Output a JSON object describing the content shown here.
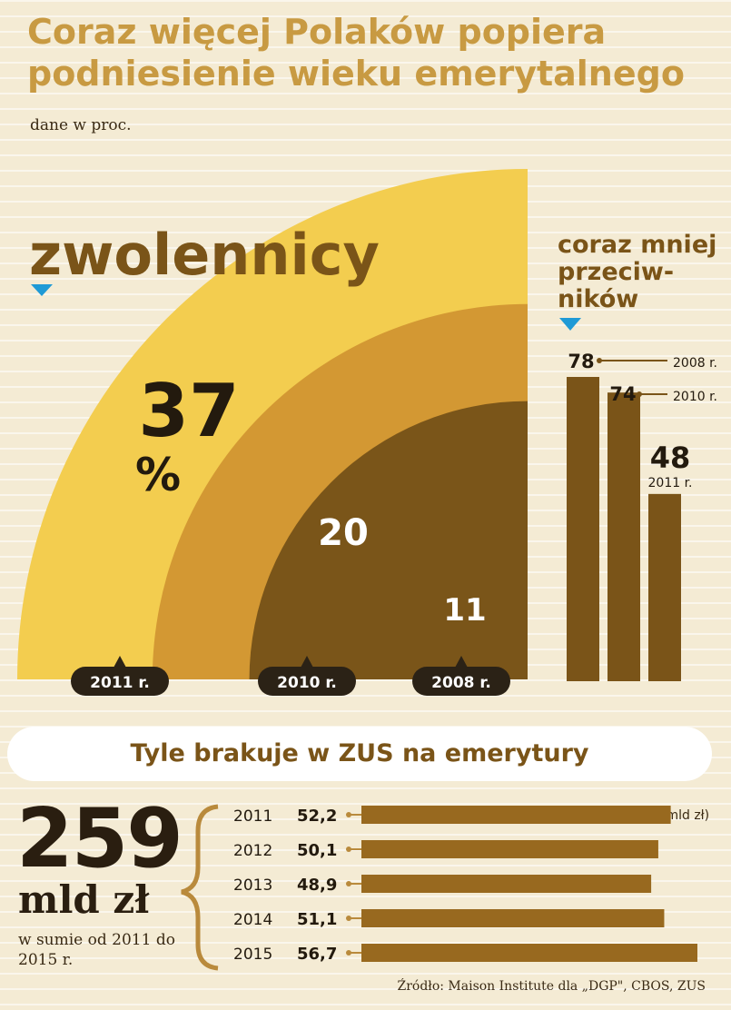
{
  "title": "Coraz więcej Polaków popiera podniesienie wieku emerytalnego",
  "subtitle": "dane w proc.",
  "supporters": {
    "heading": "zwolennicy",
    "percent_sign": "%",
    "items": [
      {
        "year": "2011 r.",
        "value": 37,
        "color": "#f3cd4f"
      },
      {
        "year": "2010 r.",
        "value": 20,
        "color": "#d39833"
      },
      {
        "year": "2008 r.",
        "value": 11,
        "color": "#7a5519"
      }
    ]
  },
  "opponents": {
    "heading": [
      "coraz mniej",
      "przeciw-",
      "ników"
    ],
    "items": [
      {
        "year": "2008 r.",
        "value": 78
      },
      {
        "year": "2010 r.",
        "value": 74
      },
      {
        "year": "2011 r.",
        "value": 48
      }
    ]
  },
  "zus": {
    "band_title": "Tyle brakuje w ZUS na emerytury",
    "total_value": "259",
    "total_unit": "mld zł",
    "total_note": "w sumie od 2011 do 2015 r.",
    "unit_note": "(mld zł)",
    "years": [
      "2011",
      "2012",
      "2013",
      "2014",
      "2015"
    ],
    "values": [
      52.2,
      50.1,
      48.9,
      51.1,
      56.7
    ],
    "labels": [
      "52,2",
      "50,1",
      "48,9",
      "51,1",
      "56,7"
    ]
  },
  "source": "Źródło: Maison Institute dla „DGP\", CBOS, ZUS",
  "chart_data": [
    {
      "type": "pie",
      "title": "zwolennicy",
      "categories": [
        "2011 r.",
        "2010 r.",
        "2008 r."
      ],
      "values": [
        37,
        20,
        11
      ]
    },
    {
      "type": "bar",
      "title": "coraz mniej przeciwników",
      "categories": [
        "2008 r.",
        "2010 r.",
        "2011 r."
      ],
      "values": [
        78,
        74,
        48
      ]
    },
    {
      "type": "bar",
      "title": "Tyle brakuje w ZUS na emerytury",
      "categories": [
        "2011",
        "2012",
        "2013",
        "2014",
        "2015"
      ],
      "values": [
        52.2,
        50.1,
        48.9,
        51.1,
        56.7
      ]
    }
  ],
  "colors": {
    "accent": "#c89a42",
    "dark_brown": "#7a5418",
    "bubble": "#2b2216",
    "pointer": "#1f9ad6"
  }
}
